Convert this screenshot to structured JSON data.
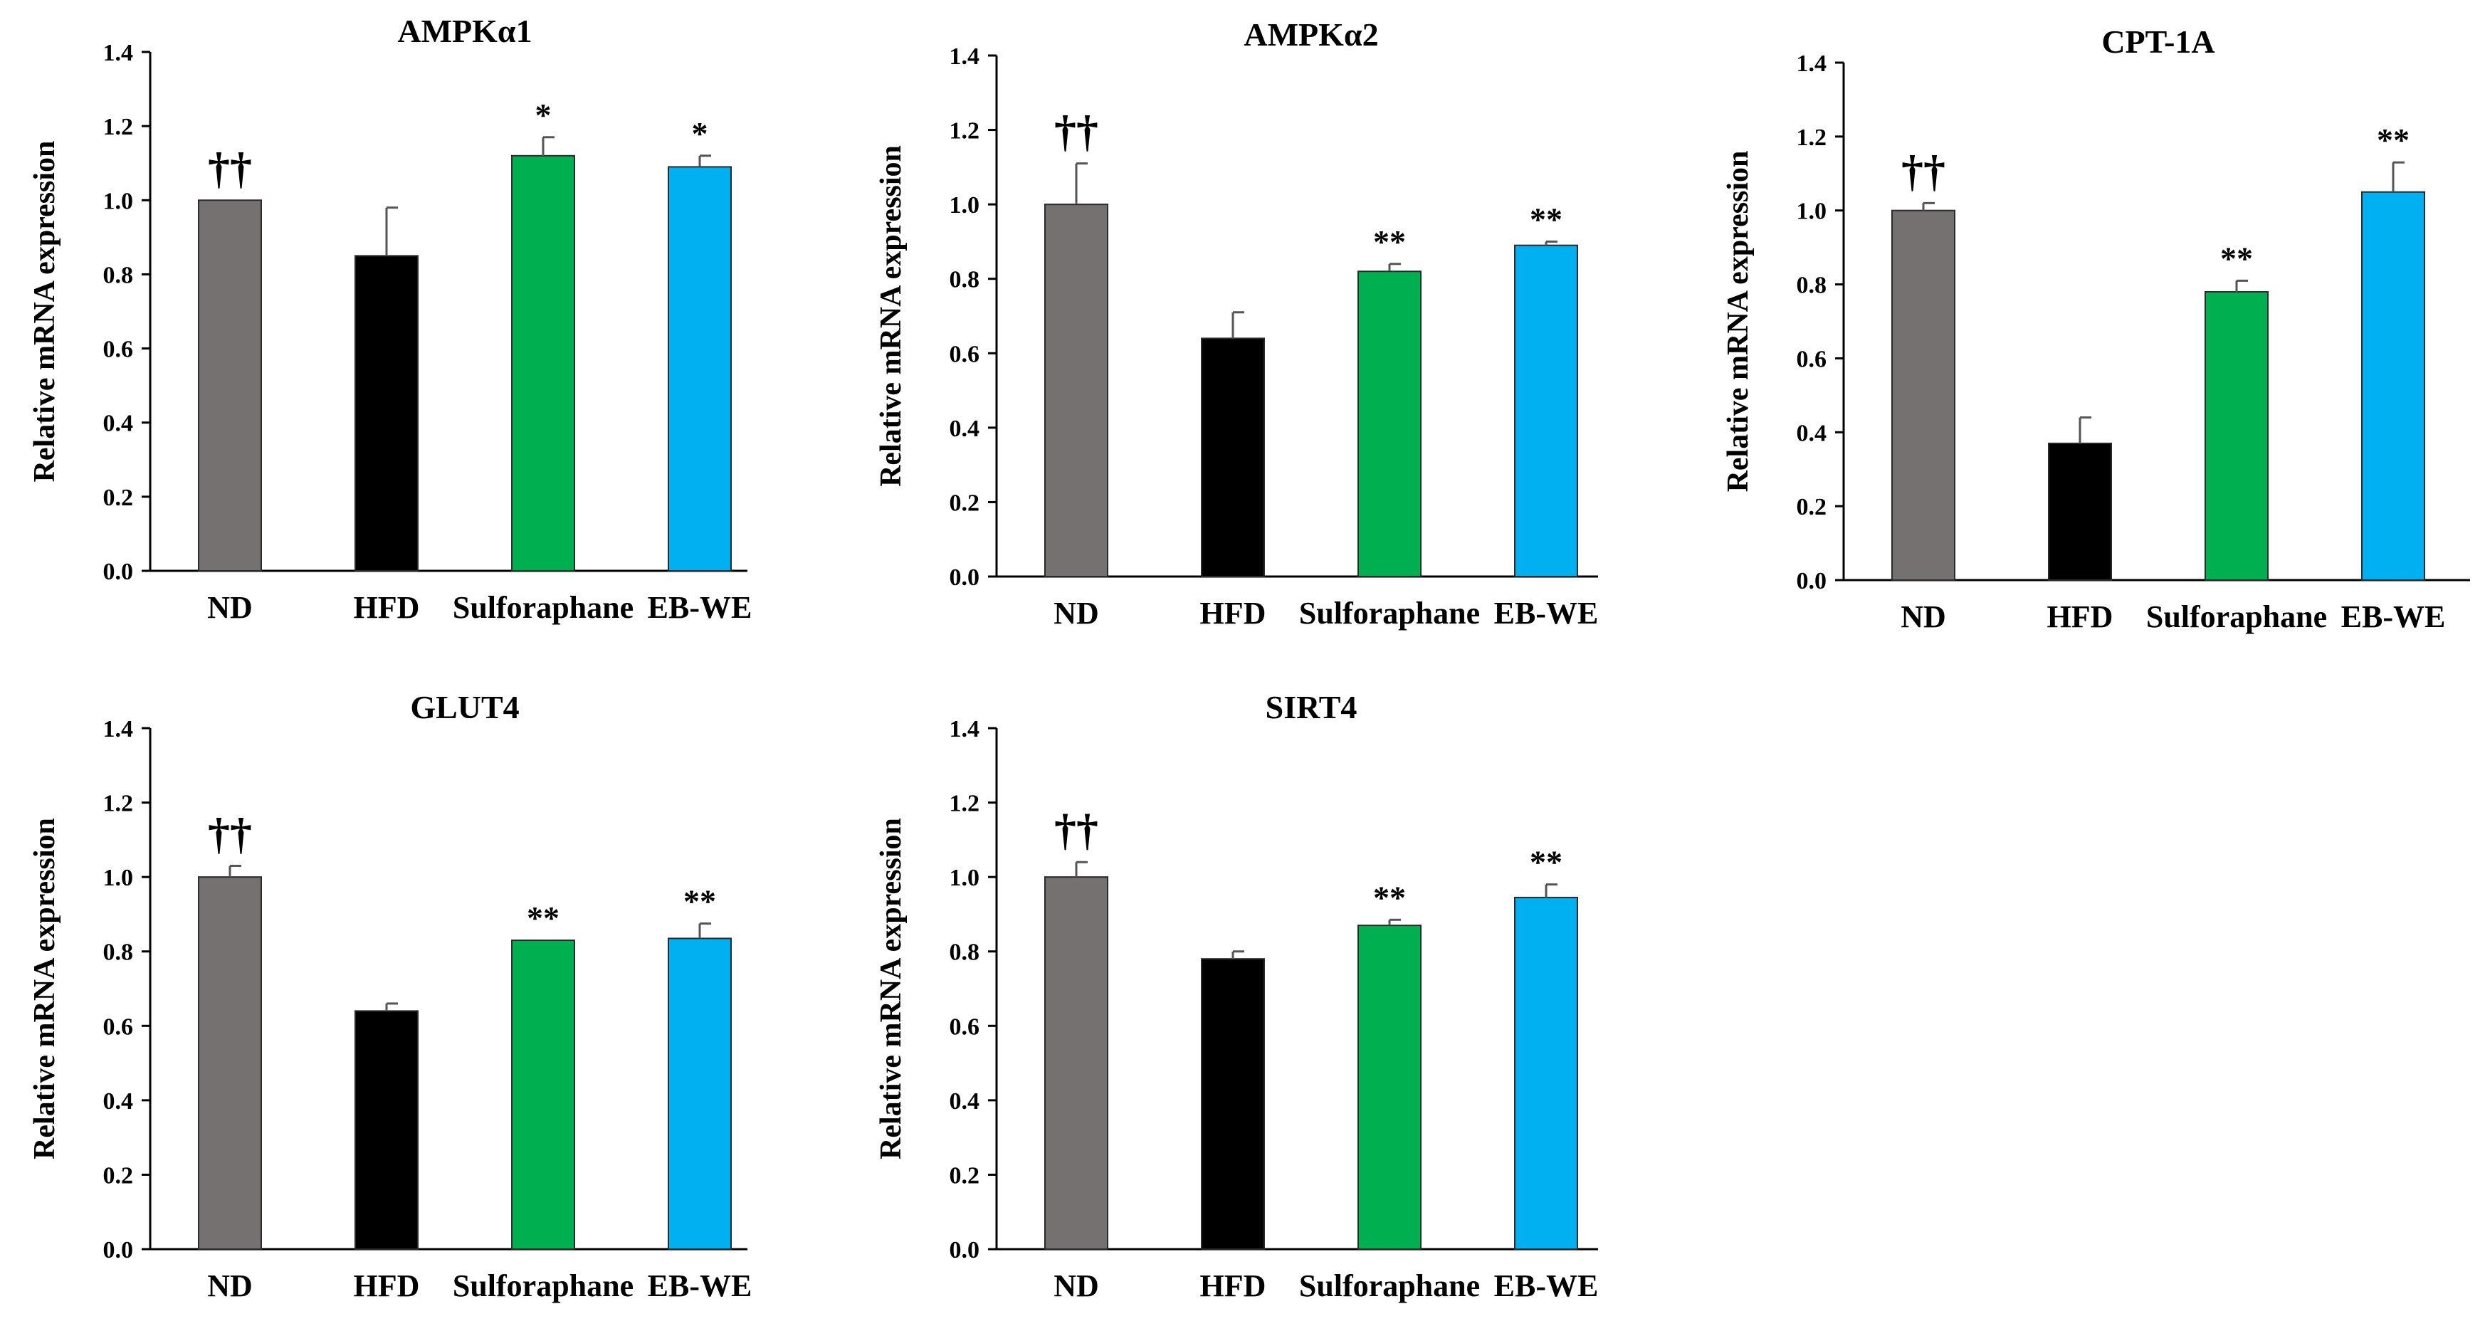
{
  "figure": {
    "background": "#ffffff",
    "bar_colors": {
      "ND": "#767171",
      "HFD": "#000000",
      "Sulforaphane": "#00b050",
      "EB-WE": "#00b0f0"
    }
  },
  "chart_data": [
    {
      "type": "bar",
      "title": "AMPKα1",
      "ylabel": "Relative mRNA expression",
      "xlabel": "",
      "ylim": [
        0,
        1.4
      ],
      "yticks": [
        "0.0",
        "0.2",
        "0.4",
        "0.6",
        "0.8",
        "1.0",
        "1.2",
        "1.4"
      ],
      "categories": [
        "ND",
        "HFD",
        "Sulforaphane",
        "EB-WE"
      ],
      "values": [
        1.0,
        0.85,
        1.12,
        1.09
      ],
      "errors": [
        0.0,
        0.13,
        0.05,
        0.03
      ],
      "annotations": [
        "††",
        "",
        "*",
        "*"
      ],
      "grid": false
    },
    {
      "type": "bar",
      "title": "AMPKα2",
      "ylabel": "Relative mRNA expression",
      "xlabel": "",
      "ylim": [
        0,
        1.4
      ],
      "yticks": [
        "0.0",
        "0.2",
        "0.4",
        "0.6",
        "0.8",
        "1.0",
        "1.2",
        "1.4"
      ],
      "categories": [
        "ND",
        "HFD",
        "Sulforaphane",
        "EB-WE"
      ],
      "values": [
        1.0,
        0.64,
        0.82,
        0.89
      ],
      "errors": [
        0.11,
        0.07,
        0.02,
        0.01
      ],
      "annotations": [
        "††",
        "",
        "**",
        "**"
      ],
      "grid": false
    },
    {
      "type": "bar",
      "title": "CPT-1A",
      "ylabel": "Relative mRNA expression",
      "xlabel": "",
      "ylim": [
        0,
        1.4
      ],
      "yticks": [
        "0.0",
        "0.2",
        "0.4",
        "0.6",
        "0.8",
        "1.0",
        "1.2",
        "1.4"
      ],
      "categories": [
        "ND",
        "HFD",
        "Sulforaphane",
        "EB-WE"
      ],
      "values": [
        1.0,
        0.37,
        0.78,
        1.05
      ],
      "errors": [
        0.02,
        0.07,
        0.03,
        0.08
      ],
      "annotations": [
        "††",
        "",
        "**",
        "**"
      ],
      "grid": false
    },
    {
      "type": "bar",
      "title": "GLUT4",
      "ylabel": "Relative mRNA expression",
      "xlabel": "",
      "ylim": [
        0,
        1.4
      ],
      "yticks": [
        "0.0",
        "0.2",
        "0.4",
        "0.6",
        "0.8",
        "1.0",
        "1.2",
        "1.4"
      ],
      "categories": [
        "ND",
        "HFD",
        "Sulforaphane",
        "EB-WE"
      ],
      "values": [
        1.0,
        0.64,
        0.83,
        0.835
      ],
      "errors": [
        0.03,
        0.02,
        0.0,
        0.04
      ],
      "annotations": [
        "††",
        "",
        "**",
        "**"
      ],
      "grid": false
    },
    {
      "type": "bar",
      "title": "SIRT4",
      "ylabel": "Relative mRNA expression",
      "xlabel": "",
      "ylim": [
        0,
        1.4
      ],
      "yticks": [
        "0.0",
        "0.2",
        "0.4",
        "0.6",
        "0.8",
        "1.0",
        "1.2",
        "1.4"
      ],
      "categories": [
        "ND",
        "HFD",
        "Sulforaphane",
        "EB-WE"
      ],
      "values": [
        1.0,
        0.78,
        0.87,
        0.945
      ],
      "errors": [
        0.04,
        0.02,
        0.015,
        0.035
      ],
      "annotations": [
        "††",
        "",
        "**",
        "**"
      ],
      "grid": false
    }
  ]
}
